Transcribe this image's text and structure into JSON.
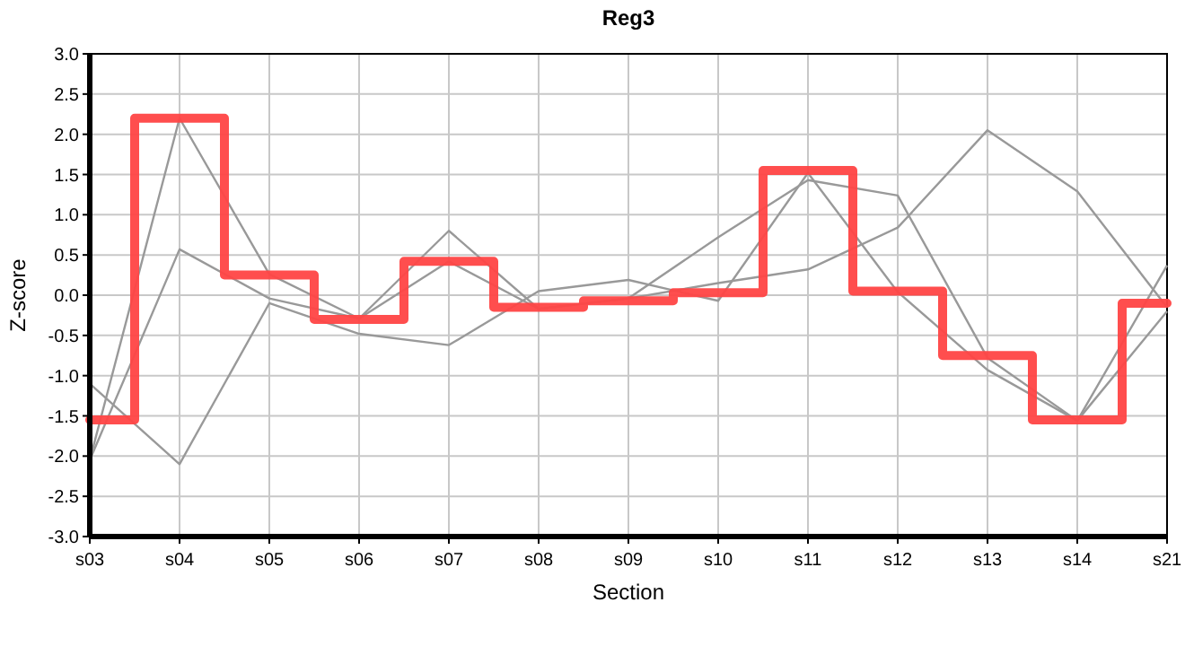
{
  "chart_data": {
    "type": "line",
    "title": "Reg3",
    "xlabel": "Section",
    "ylabel": "Z-score",
    "categories": [
      "s03",
      "s04",
      "s05",
      "s06",
      "s07",
      "s08",
      "s09",
      "s10",
      "s11",
      "s12",
      "s13",
      "s14",
      "s21"
    ],
    "series": [
      {
        "color": "#999999",
        "values": [
          -2.05,
          2.2,
          0.26,
          -0.29,
          0.8,
          -0.17,
          -0.04,
          0.72,
          1.43,
          1.24,
          -0.78,
          -1.56,
          0.37
        ]
      },
      {
        "color": "#999999",
        "values": [
          -1.1,
          -2.1,
          -0.1,
          -0.48,
          -0.62,
          0.05,
          0.19,
          -0.07,
          1.52,
          0.04,
          -0.93,
          -1.56,
          -0.2
        ]
      },
      {
        "color": "#999999",
        "values": [
          -2.05,
          0.57,
          -0.04,
          -0.29,
          0.42,
          -0.17,
          -0.04,
          0.15,
          0.32,
          0.84,
          2.05,
          1.29,
          -0.15
        ]
      },
      {
        "type": "step",
        "color": "#ff4444",
        "values": [
          -1.55,
          2.2,
          0.25,
          -0.3,
          0.42,
          -0.15,
          -0.07,
          0.03,
          1.55,
          0.05,
          -0.75,
          -1.55,
          -0.1
        ]
      }
    ],
    "ylim": [
      -3,
      3
    ],
    "yticks": [
      {
        "value": -3,
        "label": "-3.0"
      },
      {
        "value": -2.5,
        "label": "-2.5"
      },
      {
        "value": -2,
        "label": "-2.0"
      },
      {
        "value": -1.5,
        "label": "-1.5"
      },
      {
        "value": -1,
        "label": "-1.0"
      },
      {
        "value": -0.5,
        "label": "-0.5"
      },
      {
        "value": 0,
        "label": "0.0"
      },
      {
        "value": 0.5,
        "label": "0.5"
      },
      {
        "value": 1,
        "label": "1.0"
      },
      {
        "value": 1.5,
        "label": "1.5"
      },
      {
        "value": 2,
        "label": "2.0"
      },
      {
        "value": 2.5,
        "label": "2.5"
      },
      {
        "value": 3,
        "label": "3.0"
      }
    ],
    "grid": true,
    "marker": "none"
  }
}
